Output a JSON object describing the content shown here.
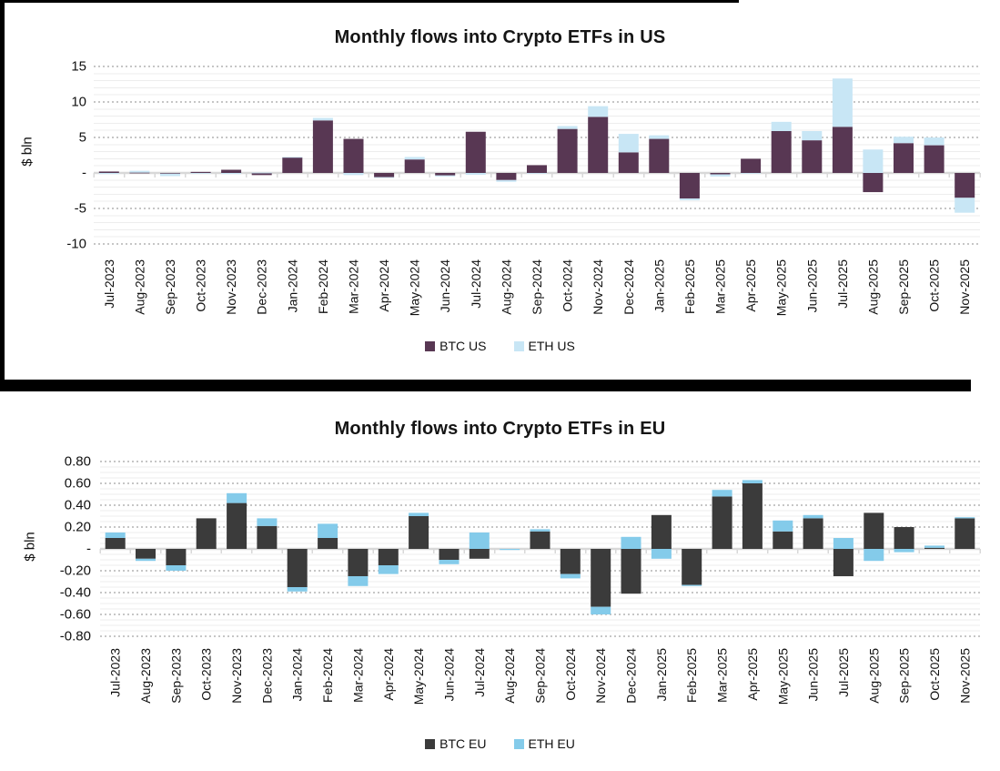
{
  "frame_color": "#000000",
  "chart_data": [
    {
      "type": "bar",
      "stacked": true,
      "title": "Monthly flows into Crypto ETFs in US",
      "ylabel": "$ bln",
      "ylim": [
        -10,
        15
      ],
      "ytick_step": 5,
      "minor_grid_step": 1,
      "grid": true,
      "legend_position": "bottom",
      "ytick_values": [
        15,
        10,
        5,
        0,
        -5,
        -10
      ],
      "ytick_labels": [
        "15",
        "10",
        "5",
        "-",
        "-5",
        "-10"
      ],
      "categories": [
        "Jul-2023",
        "Aug-2023",
        "Sep-2023",
        "Oct-2023",
        "Nov-2023",
        "Dec-2023",
        "Jan-2024",
        "Feb-2024",
        "Mar-2024",
        "Apr-2024",
        "May-2024",
        "Jun-2024",
        "Jul-2024",
        "Aug-2024",
        "Sep-2024",
        "Oct-2024",
        "Nov-2024",
        "Dec-2024",
        "Jan-2025",
        "Feb-2025",
        "Mar-2025",
        "Apr-2025",
        "May-2025",
        "Jun-2025",
        "Jul-2025",
        "Aug-2025",
        "Sep-2025",
        "Oct-2025",
        "Nov-2025"
      ],
      "series": [
        {
          "name": "BTC US",
          "color": "#583753",
          "values": [
            0.2,
            0.05,
            -0.1,
            0.15,
            0.45,
            -0.3,
            2.2,
            7.4,
            4.8,
            -0.6,
            1.9,
            -0.35,
            5.8,
            -1.0,
            1.1,
            6.2,
            7.9,
            2.9,
            4.8,
            -3.6,
            -0.2,
            2.0,
            5.9,
            4.6,
            6.5,
            -2.7,
            4.2,
            3.9,
            -3.5
          ]
        },
        {
          "name": "ETH US",
          "color": "#c8e6f5",
          "values": [
            -0.15,
            0.25,
            -0.35,
            -0.1,
            -0.15,
            0.05,
            0.05,
            0.35,
            -0.3,
            -0.1,
            0.35,
            -0.15,
            -0.25,
            -0.25,
            -0.1,
            0.4,
            1.5,
            2.6,
            0.5,
            -0.25,
            -0.3,
            -0.1,
            1.3,
            1.3,
            6.8,
            3.3,
            0.9,
            1.1,
            -2.1
          ]
        }
      ]
    },
    {
      "type": "bar",
      "stacked": true,
      "title": "Monthly flows into Crypto ETFs in EU",
      "ylabel": "$ bln",
      "ylim": [
        -0.8,
        0.8
      ],
      "ytick_step": 0.2,
      "minor_grid_step": 0.05,
      "grid": true,
      "legend_position": "bottom",
      "ytick_values": [
        0.8,
        0.6,
        0.4,
        0.2,
        0,
        -0.2,
        -0.4,
        -0.6,
        -0.8
      ],
      "ytick_labels": [
        "0.80",
        "0.60",
        "0.40",
        "0.20",
        "-",
        "-0.20",
        "-0.40",
        "-0.60",
        "-0.80"
      ],
      "categories": [
        "Jul-2023",
        "Aug-2023",
        "Sep-2023",
        "Oct-2023",
        "Nov-2023",
        "Dec-2023",
        "Jan-2024",
        "Feb-2024",
        "Mar-2024",
        "Apr-2024",
        "May-2024",
        "Jun-2024",
        "Jul-2024",
        "Aug-2024",
        "Sep-2024",
        "Oct-2024",
        "Nov-2024",
        "Dec-2024",
        "Jan-2025",
        "Feb-2025",
        "Mar-2025",
        "Apr-2025",
        "May-2025",
        "Jun-2025",
        "Jul-2025",
        "Aug-2025",
        "Sep-2025",
        "Oct-2025",
        "Nov-2025"
      ],
      "series": [
        {
          "name": "BTC EU",
          "color": "#3b3b3b",
          "values": [
            0.1,
            -0.09,
            -0.15,
            0.28,
            0.42,
            0.21,
            -0.35,
            0.1,
            -0.25,
            -0.15,
            0.3,
            -0.1,
            -0.09,
            0.0,
            0.16,
            -0.23,
            -0.53,
            -0.41,
            0.31,
            -0.33,
            0.48,
            0.6,
            0.16,
            0.28,
            -0.25,
            0.33,
            0.2,
            0.01,
            0.28
          ]
        },
        {
          "name": "ETH EU",
          "color": "#84cbea",
          "values": [
            0.05,
            -0.02,
            -0.05,
            0.0,
            0.09,
            0.07,
            -0.04,
            0.13,
            -0.09,
            -0.08,
            0.03,
            -0.04,
            0.15,
            -0.01,
            0.02,
            -0.04,
            -0.07,
            0.11,
            -0.09,
            -0.01,
            0.06,
            0.03,
            0.1,
            0.03,
            0.1,
            -0.11,
            -0.03,
            0.02,
            0.01
          ]
        }
      ]
    }
  ],
  "style": {
    "axis_line_color": "#d8d8d8",
    "minor_grid_color": "#ededed",
    "major_grid_color": "#c6c6c6",
    "title_color": "#151515"
  }
}
